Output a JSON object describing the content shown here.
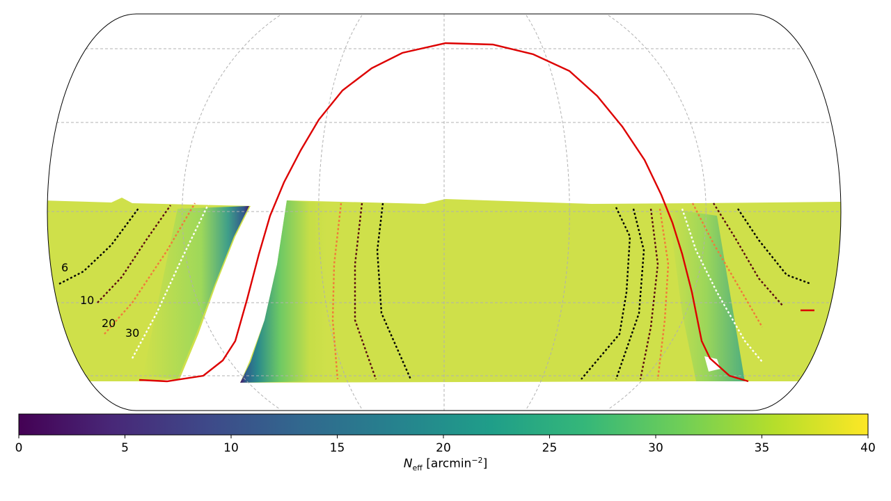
{
  "chart_data": {
    "type": "heatmap",
    "projection": "equal-earth all-sky map",
    "title": "",
    "colormap": "viridis",
    "colormap_stops": [
      "#440154",
      "#482878",
      "#3e4989",
      "#31688e",
      "#26828e",
      "#1f9e89",
      "#35b779",
      "#6ece58",
      "#b5de2b",
      "#fde725"
    ],
    "colorbar": {
      "min": 0,
      "max": 40,
      "ticks": [
        0,
        5,
        10,
        15,
        20,
        25,
        30,
        35,
        40
      ],
      "tick_labels": [
        "0",
        "5",
        "10",
        "15",
        "20",
        "25",
        "30",
        "35",
        "40"
      ],
      "label_symbol": "N",
      "label_subscript": "eff",
      "label_unit_open": " [arcmin",
      "label_unit_exponent": "−2",
      "label_unit_close": "]"
    },
    "contour_levels": [
      6,
      10,
      20,
      30
    ],
    "contour_labels": [
      "6",
      "10",
      "20",
      "30"
    ],
    "contour_colors": {
      "6": "#000000",
      "10": "#5a0a10",
      "20": "#f07a3a",
      "30": "#ffffff"
    },
    "boundary_curve_color": "#dd0000",
    "grid": true,
    "colors": {
      "survey_fill": "#cfe04a",
      "edge_mid": "#7ccf63",
      "edge_low": "#2c7d8c",
      "edge_min": "#46196a"
    }
  }
}
